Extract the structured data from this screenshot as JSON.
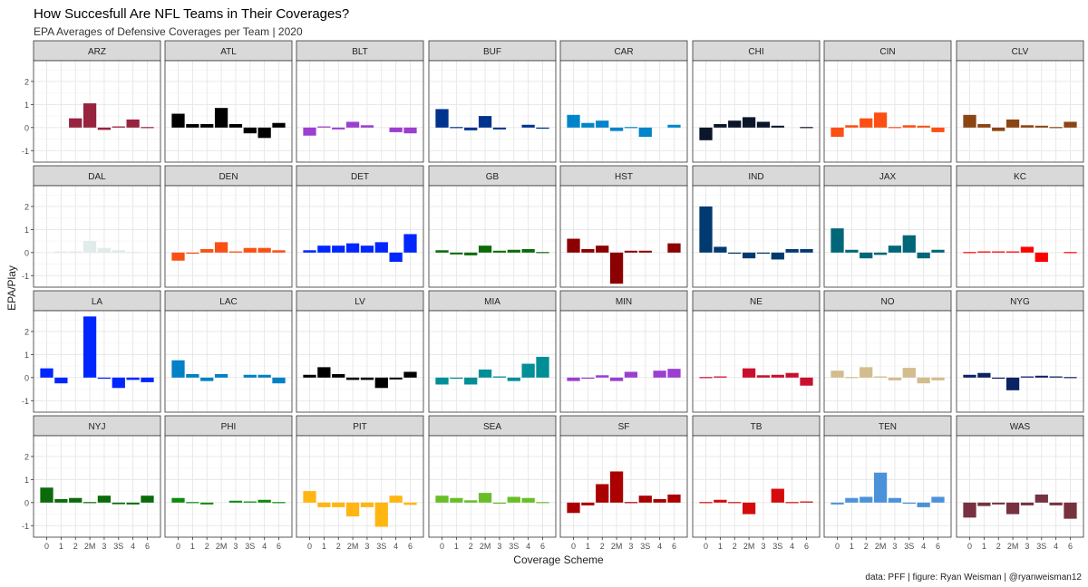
{
  "title": "How Succesfull Are NFL Teams in Their Coverages?",
  "subtitle": "EPA Averages of Defensive Coverages per Team | 2020",
  "caption": "data: PFF | figure: Ryan Weisman | @ryanweisman12",
  "chart_data": {
    "type": "bar",
    "layout": "facet-grid 4 rows x 8 columns",
    "xlabel": "Coverage Scheme",
    "ylabel": "EPA/Play",
    "categories": [
      "0",
      "1",
      "2",
      "2M",
      "3",
      "3S",
      "4",
      "6"
    ],
    "ylim": [
      -1.5,
      2.9
    ],
    "yticks": [
      -1,
      0,
      1,
      2
    ],
    "grid": true,
    "legend": "none",
    "panels": [
      {
        "team": "ARZ",
        "color": "#97233F",
        "values": [
          null,
          null,
          0.4,
          1.05,
          -0.1,
          0.05,
          0.35,
          0.02
        ]
      },
      {
        "team": "ATL",
        "color": "#000000",
        "values": [
          0.6,
          0.15,
          0.15,
          0.85,
          0.15,
          -0.25,
          -0.45,
          0.2
        ]
      },
      {
        "team": "BLT",
        "color": "#9B3FD0",
        "values": [
          -0.35,
          0.05,
          -0.08,
          0.25,
          0.1,
          null,
          -0.2,
          -0.25
        ]
      },
      {
        "team": "BUF",
        "color": "#00338D",
        "values": [
          0.8,
          -0.03,
          -0.12,
          0.5,
          -0.08,
          null,
          0.12,
          -0.05
        ]
      },
      {
        "team": "CAR",
        "color": "#0085CA",
        "values": [
          0.55,
          0.2,
          0.3,
          -0.15,
          0.02,
          -0.4,
          null,
          0.12
        ]
      },
      {
        "team": "CHI",
        "color": "#0B162A",
        "values": [
          -0.55,
          0.15,
          0.3,
          0.45,
          0.25,
          0.08,
          null,
          -0.03
        ]
      },
      {
        "team": "CIN",
        "color": "#FB4F14",
        "values": [
          -0.4,
          0.1,
          0.4,
          0.65,
          0.02,
          0.1,
          0.08,
          -0.2
        ]
      },
      {
        "team": "CLV",
        "color": "#8B4513",
        "values": [
          0.55,
          0.15,
          -0.15,
          0.35,
          0.1,
          0.08,
          0.03,
          0.25
        ]
      },
      {
        "team": "DAL",
        "color": "#E0ECEA",
        "values": [
          null,
          0.05,
          0.05,
          0.5,
          0.2,
          0.1,
          -0.03,
          null
        ]
      },
      {
        "team": "DEN",
        "color": "#FB4F14",
        "values": [
          -0.35,
          -0.05,
          0.15,
          0.45,
          0.05,
          0.2,
          0.2,
          0.1
        ]
      },
      {
        "team": "DET",
        "color": "#0026FF",
        "values": [
          0.1,
          0.3,
          0.3,
          0.4,
          0.3,
          0.45,
          -0.4,
          0.8
        ]
      },
      {
        "team": "GB",
        "color": "#0B6B0B",
        "values": [
          0.1,
          -0.08,
          -0.12,
          0.3,
          0.08,
          0.12,
          0.15,
          -0.02
        ]
      },
      {
        "team": "HST",
        "color": "#8B0000",
        "values": [
          0.6,
          0.15,
          0.3,
          -1.35,
          0.08,
          0.08,
          null,
          0.4
        ]
      },
      {
        "team": "IND",
        "color": "#003A70",
        "values": [
          2.0,
          0.25,
          -0.05,
          -0.25,
          -0.05,
          -0.3,
          0.15,
          0.15
        ]
      },
      {
        "team": "JAX",
        "color": "#006778",
        "values": [
          1.05,
          0.12,
          -0.25,
          -0.1,
          0.3,
          0.75,
          -0.25,
          0.12
        ]
      },
      {
        "team": "KC",
        "color": "#FF0000",
        "values": [
          -0.03,
          0.05,
          0.05,
          0.05,
          0.25,
          -0.4,
          null,
          0.02
        ]
      },
      {
        "team": "LA",
        "color": "#0026FF",
        "values": [
          0.4,
          -0.25,
          null,
          2.65,
          -0.05,
          -0.45,
          -0.1,
          -0.2
        ]
      },
      {
        "team": "LAC",
        "color": "#0080C6",
        "values": [
          0.75,
          0.15,
          -0.15,
          0.15,
          null,
          0.12,
          0.12,
          -0.25
        ]
      },
      {
        "team": "LV",
        "color": "#000000",
        "values": [
          0.12,
          0.45,
          0.15,
          -0.1,
          -0.1,
          -0.45,
          -0.08,
          0.25
        ]
      },
      {
        "team": "MIA",
        "color": "#008E97",
        "values": [
          -0.3,
          -0.05,
          -0.3,
          0.35,
          0.05,
          -0.15,
          0.6,
          0.9
        ]
      },
      {
        "team": "MIN",
        "color": "#9B3FD0",
        "values": [
          -0.15,
          -0.05,
          0.1,
          -0.15,
          0.25,
          null,
          0.3,
          0.38
        ]
      },
      {
        "team": "NE",
        "color": "#C8102E",
        "values": [
          0.02,
          0.05,
          null,
          0.4,
          0.1,
          0.12,
          0.2,
          -0.35
        ]
      },
      {
        "team": "NO",
        "color": "#D3BC8D",
        "values": [
          0.3,
          -0.03,
          0.45,
          0.05,
          -0.12,
          0.42,
          -0.25,
          -0.12
        ]
      },
      {
        "team": "NYG",
        "color": "#0B2265",
        "values": [
          0.12,
          0.2,
          -0.05,
          -0.55,
          0.05,
          0.08,
          0.05,
          0.02
        ]
      },
      {
        "team": "NYJ",
        "color": "#0B6B0B",
        "values": [
          0.65,
          0.15,
          0.2,
          -0.03,
          0.3,
          -0.07,
          -0.08,
          0.3
        ]
      },
      {
        "team": "PHI",
        "color": "#0B8B0B",
        "values": [
          0.2,
          0.02,
          -0.08,
          null,
          0.08,
          0.05,
          0.12,
          0.02
        ]
      },
      {
        "team": "PIT",
        "color": "#FFB612",
        "values": [
          0.5,
          -0.2,
          -0.2,
          -0.6,
          -0.2,
          -1.05,
          0.3,
          -0.1
        ]
      },
      {
        "team": "SEA",
        "color": "#69BE28",
        "values": [
          0.3,
          0.2,
          0.1,
          0.42,
          -0.05,
          0.25,
          0.2,
          0.02
        ]
      },
      {
        "team": "SF",
        "color": "#AA0000",
        "values": [
          -0.45,
          -0.12,
          0.8,
          1.35,
          -0.03,
          0.3,
          0.15,
          0.35
        ]
      },
      {
        "team": "TB",
        "color": "#D50A0A",
        "values": [
          0.02,
          0.12,
          0.03,
          -0.5,
          null,
          0.6,
          0.02,
          0.05
        ]
      },
      {
        "team": "TEN",
        "color": "#4B92DB",
        "values": [
          -0.08,
          0.2,
          0.25,
          1.3,
          0.2,
          -0.05,
          -0.2,
          0.25
        ]
      },
      {
        "team": "WAS",
        "color": "#773141",
        "values": [
          -0.65,
          -0.15,
          -0.08,
          -0.5,
          -0.12,
          0.35,
          -0.12,
          -0.7
        ]
      }
    ]
  }
}
